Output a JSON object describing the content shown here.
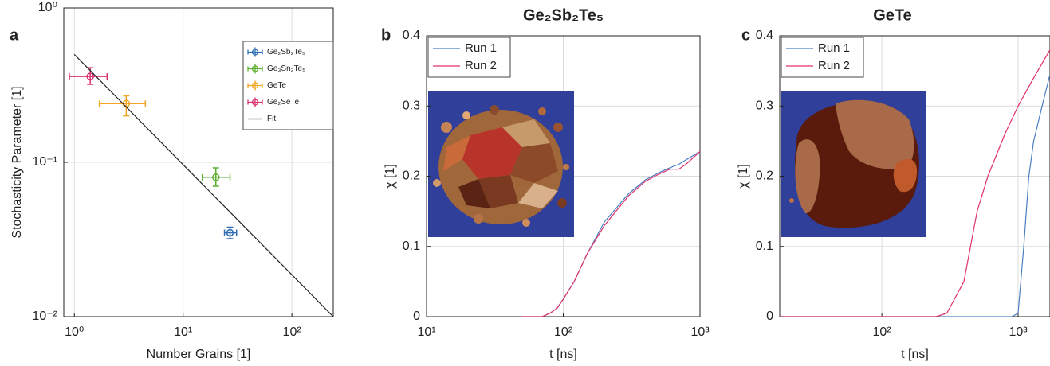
{
  "chart_data": [
    {
      "type": "scatter",
      "panel": "a",
      "xlabel": "Number Grains [1]",
      "ylabel": "Stochasticity Parameter [1]",
      "xscale": "log",
      "yscale": "log",
      "grid": true,
      "legend": "upper right",
      "xlim": [
        0.8,
        240
      ],
      "ylim": [
        0.01,
        1
      ],
      "xticks": [
        {
          "value": 1,
          "label": "10⁰"
        },
        {
          "value": 10,
          "label": "10¹"
        },
        {
          "value": 100,
          "label": "10²"
        }
      ],
      "yticks": [
        {
          "value": 0.01,
          "label": "10⁻²"
        },
        {
          "value": 0.1,
          "label": "10⁻¹"
        },
        {
          "value": 1,
          "label": "10⁰"
        }
      ],
      "series": [
        {
          "name": "Ge₂Sb₂Te₅",
          "color": "#2f6db5",
          "x": [
            27
          ],
          "values": [
            0.035
          ],
          "xmin": [
            24
          ],
          "xmax": [
            31
          ],
          "ymin": [
            0.032
          ],
          "ymax": [
            0.038
          ]
        },
        {
          "name": "Ge₃Sn₂Te₅",
          "color": "#5cb030",
          "x": [
            20
          ],
          "values": [
            0.08
          ],
          "xmin": [
            15
          ],
          "xmax": [
            27
          ],
          "ymin": [
            0.07
          ],
          "ymax": [
            0.092
          ]
        },
        {
          "name": "GeTe",
          "color": "#f0a623",
          "x": [
            3
          ],
          "values": [
            0.24
          ],
          "xmin": [
            1.7
          ],
          "xmax": [
            4.5
          ],
          "ymin": [
            0.2
          ],
          "ymax": [
            0.27
          ]
        },
        {
          "name": "Ge₂SeTe",
          "color": "#d8336f",
          "x": [
            1.4
          ],
          "values": [
            0.36
          ],
          "xmin": [
            0.9
          ],
          "xmax": [
            2
          ],
          "ymin": [
            0.32
          ],
          "ymax": [
            0.41
          ]
        },
        {
          "name": "Fit",
          "color": "#222222",
          "mode": "line",
          "x": [
            1,
            240
          ],
          "values": [
            0.5,
            0.01
          ]
        }
      ]
    },
    {
      "type": "line",
      "panel": "b",
      "title": "Ge₂Sb₂Te₅",
      "xlabel": "t [ns]",
      "ylabel": "χ [1]",
      "xscale": "log",
      "grid": true,
      "legend": "upper left",
      "xlim": [
        10,
        1000
      ],
      "ylim": [
        0,
        0.4
      ],
      "xticks": [
        {
          "value": 10,
          "label": "10¹"
        },
        {
          "value": 100,
          "label": "10²"
        },
        {
          "value": 1000,
          "label": "10³"
        }
      ],
      "yticks": [
        0,
        0.1,
        0.2,
        0.3,
        0.4
      ],
      "series": [
        {
          "name": "Run 1",
          "color": "#4a7fc1",
          "x": [
            50,
            70,
            80,
            90,
            100,
            120,
            150,
            200,
            300,
            400,
            500,
            600,
            700,
            800,
            1000
          ],
          "values": [
            0,
            0,
            0.005,
            0.012,
            0.025,
            0.05,
            0.09,
            0.135,
            0.175,
            0.195,
            0.205,
            0.212,
            0.217,
            0.224,
            0.235
          ]
        },
        {
          "name": "Run 2",
          "color": "#e0306a",
          "x": [
            50,
            70,
            80,
            90,
            100,
            120,
            150,
            200,
            300,
            400,
            500,
            600,
            700,
            800,
            1000
          ],
          "values": [
            0,
            0,
            0.005,
            0.012,
            0.025,
            0.05,
            0.09,
            0.13,
            0.172,
            0.193,
            0.203,
            0.21,
            0.21,
            0.218,
            0.235
          ]
        }
      ]
    },
    {
      "type": "line",
      "panel": "c",
      "title": "GeTe",
      "xlabel": "t [ns]",
      "ylabel": "χ [1]",
      "xscale": "log",
      "grid": true,
      "legend": "upper left",
      "xlim": [
        17.8,
        1714
      ],
      "ylim": [
        0,
        0.4
      ],
      "xticks": [
        {
          "value": 100,
          "label": "10²"
        },
        {
          "value": 1000,
          "label": "10³"
        }
      ],
      "yticks": [
        0,
        0.1,
        0.2,
        0.3,
        0.4
      ],
      "series": [
        {
          "name": "Run 1",
          "color": "#4a7fc1",
          "x": [
            18,
            900,
            1000,
            1100,
            1200,
            1300,
            1500,
            1714
          ],
          "values": [
            0,
            0,
            0.005,
            0.1,
            0.2,
            0.25,
            0.3,
            0.345
          ]
        },
        {
          "name": "Run 2",
          "color": "#e0306a",
          "x": [
            18,
            250,
            300,
            400,
            500,
            600,
            800,
            1000,
            1300,
            1714
          ],
          "values": [
            0,
            0,
            0.005,
            0.05,
            0.15,
            0.2,
            0.26,
            0.3,
            0.34,
            0.38
          ]
        }
      ]
    }
  ]
}
